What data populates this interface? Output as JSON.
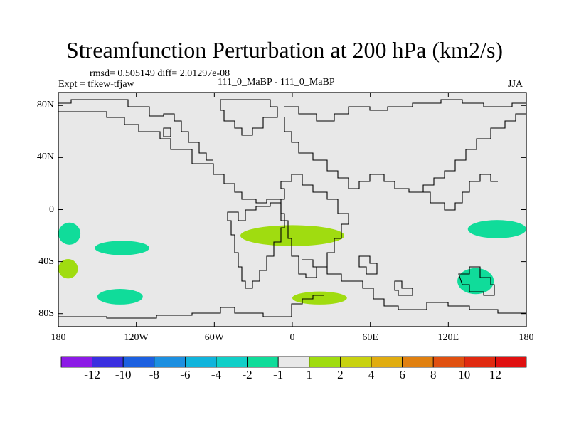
{
  "title": "Streamfunction Perturbation at 200 hPa (km2/s)",
  "stats": "rmsd= 0.505149 diff= 2.01297e-08",
  "left_label": "Expt = tfkew-tfjaw",
  "center_label": "111_0_MaBP - 111_0_MaBP",
  "right_label": "JJA",
  "y_ticks": [
    "80N",
    "40N",
    "0",
    "40S",
    "80S"
  ],
  "x_ticks": [
    "180",
    "120W",
    "60W",
    "0",
    "60E",
    "120E",
    "180"
  ],
  "colorbar": {
    "labels": [
      "-12",
      "-10",
      "-8",
      "-6",
      "-4",
      "-2",
      "-1",
      "1",
      "2",
      "4",
      "6",
      "8",
      "10",
      "12"
    ],
    "colors": [
      "#8c1ae6",
      "#3a2fe0",
      "#1c60e0",
      "#1c8fe0",
      "#10b4dc",
      "#10cfc8",
      "#10dc9a",
      "#e8e8e8",
      "#a0dc10",
      "#c8d210",
      "#e0ac10",
      "#e08010",
      "#e05010",
      "#e02a10",
      "#e01010"
    ]
  },
  "chart_data": {
    "type": "map",
    "projection": "cylindrical equidistant",
    "lon_range": [
      -180,
      180
    ],
    "lat_range": [
      -90,
      90
    ],
    "background_class": "-1 to 1",
    "anomaly_regions": [
      {
        "class": "1 to 2",
        "color": "#a0dc10",
        "lon_range": [
          -40,
          40
        ],
        "lat_range": [
          -28,
          -12
        ]
      },
      {
        "class": "1 to 2",
        "color": "#a0dc10",
        "lon_range": [
          0,
          42
        ],
        "lat_range": [
          -73,
          -63
        ]
      },
      {
        "class": "1 to 2",
        "color": "#a0dc10",
        "lon_range": [
          -180,
          -165
        ],
        "lat_range": [
          -53,
          -38
        ]
      },
      {
        "class": "-2 to -1",
        "color": "#10dc9a",
        "lon_range": [
          -180,
          -163
        ],
        "lat_range": [
          -27,
          -10
        ]
      },
      {
        "class": "-2 to -1",
        "color": "#10dc9a",
        "lon_range": [
          -152,
          -110
        ],
        "lat_range": [
          -35,
          -24
        ]
      },
      {
        "class": "-2 to -1",
        "color": "#10dc9a",
        "lon_range": [
          -150,
          -115
        ],
        "lat_range": [
          -73,
          -61
        ]
      },
      {
        "class": "-2 to -1",
        "color": "#10dc9a",
        "lon_range": [
          135,
          180
        ],
        "lat_range": [
          -22,
          -8
        ]
      },
      {
        "class": "-2 to -1",
        "color": "#10dc9a",
        "lon_range": [
          127,
          155
        ],
        "lat_range": [
          -65,
          -45
        ]
      }
    ]
  }
}
